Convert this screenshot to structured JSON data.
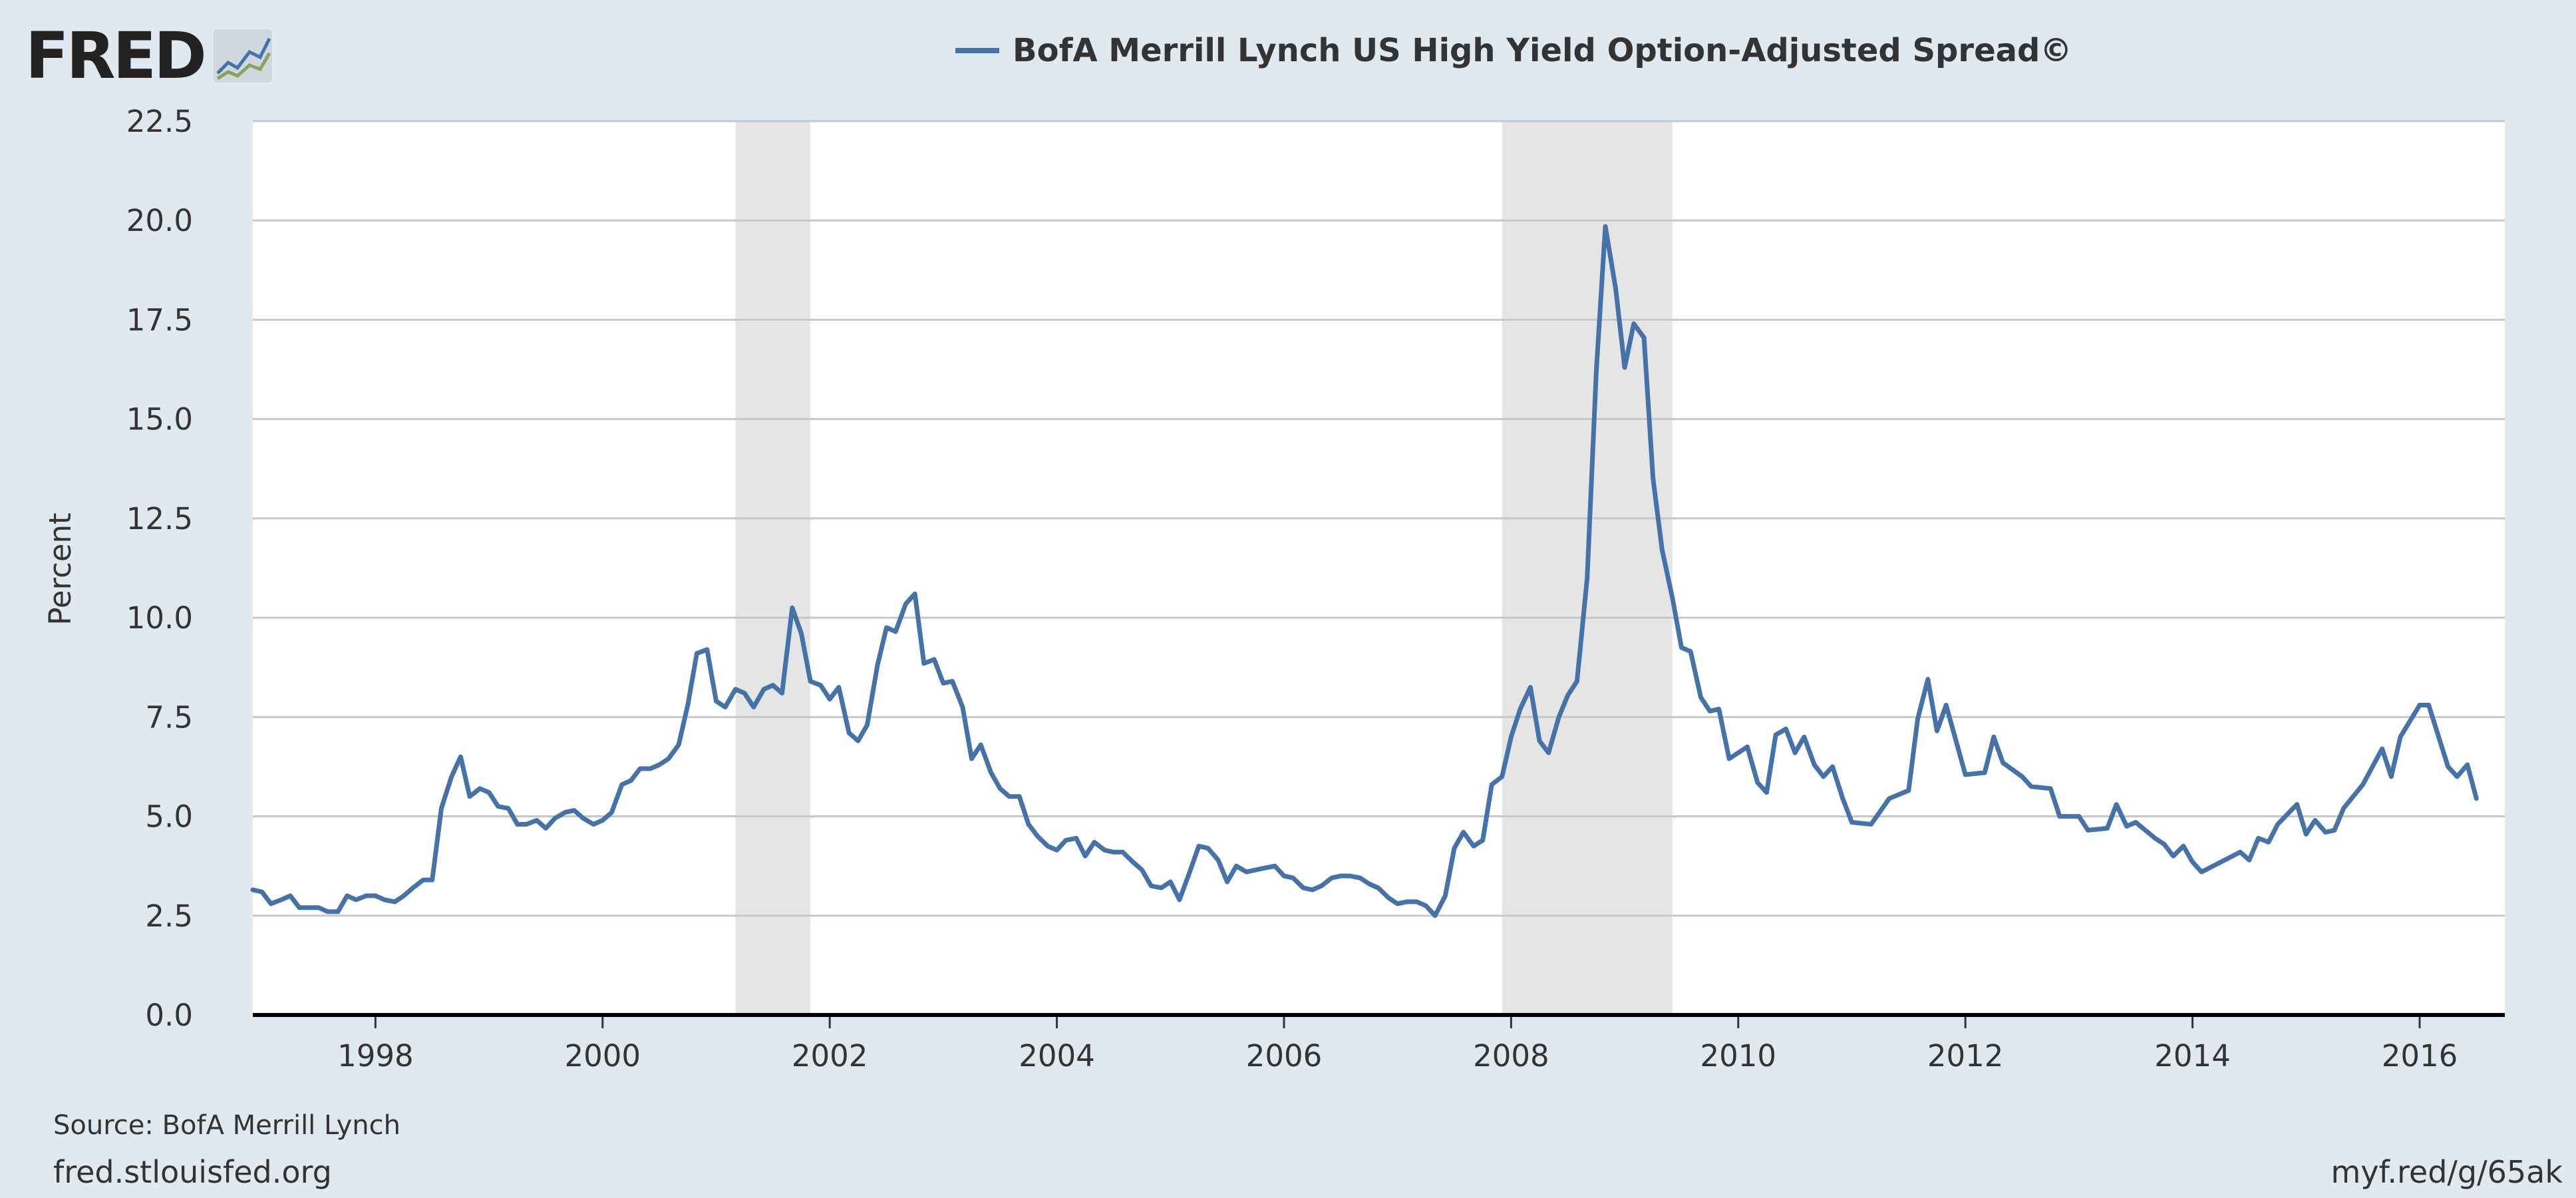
{
  "logo": {
    "text": "FRED",
    "icon": "fred-chart-icon"
  },
  "legend": {
    "label": "BofA Merrill Lynch US High Yield Option-Adjusted Spread©",
    "color": "#4572a7"
  },
  "footer": {
    "source": "Source: BofA Merrill Lynch",
    "site": "fred.stlouisfed.org",
    "link": "myf.red/g/65ak"
  },
  "chart_data": {
    "type": "line",
    "title": "",
    "ylabel": "Percent",
    "xlabel": "",
    "xlim": [
      1996.92,
      2016.75
    ],
    "ylim": [
      0,
      22.5
    ],
    "yticks": [
      "0.0",
      "2.5",
      "5.0",
      "7.5",
      "10.0",
      "12.5",
      "15.0",
      "17.5",
      "20.0",
      "22.5"
    ],
    "xticks": [
      "1998",
      "2000",
      "2002",
      "2004",
      "2006",
      "2008",
      "2010",
      "2012",
      "2014",
      "2016"
    ],
    "grid": true,
    "legend_position": "top-center",
    "recessions": [
      [
        2001.17,
        2001.83
      ],
      [
        2007.92,
        2009.42
      ]
    ],
    "series": [
      {
        "name": "BofA Merrill Lynch US High Yield Option-Adjusted Spread©",
        "color": "#4572a7",
        "x": [
          1996.92,
          1997.0,
          1997.08,
          1997.17,
          1997.25,
          1997.33,
          1997.42,
          1997.5,
          1997.58,
          1997.67,
          1997.75,
          1997.83,
          1997.92,
          1998.0,
          1998.08,
          1998.17,
          1998.25,
          1998.33,
          1998.42,
          1998.5,
          1998.58,
          1998.67,
          1998.75,
          1998.83,
          1998.92,
          1999.0,
          1999.08,
          1999.17,
          1999.25,
          1999.33,
          1999.42,
          1999.5,
          1999.58,
          1999.67,
          1999.75,
          1999.83,
          1999.92,
          2000.0,
          2000.08,
          2000.17,
          2000.25,
          2000.33,
          2000.42,
          2000.5,
          2000.58,
          2000.67,
          2000.75,
          2000.83,
          2000.92,
          2001.0,
          2001.08,
          2001.17,
          2001.25,
          2001.33,
          2001.42,
          2001.5,
          2001.58,
          2001.67,
          2001.75,
          2001.83,
          2001.92,
          2002.0,
          2002.08,
          2002.17,
          2002.25,
          2002.33,
          2002.42,
          2002.5,
          2002.58,
          2002.67,
          2002.75,
          2002.83,
          2002.92,
          2003.0,
          2003.08,
          2003.17,
          2003.25,
          2003.33,
          2003.42,
          2003.5,
          2003.58,
          2003.67,
          2003.75,
          2003.83,
          2003.92,
          2004.0,
          2004.08,
          2004.17,
          2004.25,
          2004.33,
          2004.42,
          2004.5,
          2004.58,
          2004.67,
          2004.75,
          2004.83,
          2004.92,
          2005.0,
          2005.08,
          2005.17,
          2005.25,
          2005.33,
          2005.42,
          2005.5,
          2005.58,
          2005.67,
          2005.75,
          2005.83,
          2005.92,
          2006.0,
          2006.08,
          2006.17,
          2006.25,
          2006.33,
          2006.42,
          2006.5,
          2006.58,
          2006.67,
          2006.75,
          2006.83,
          2006.92,
          2007.0,
          2007.08,
          2007.17,
          2007.25,
          2007.33,
          2007.42,
          2007.5,
          2007.58,
          2007.67,
          2007.75,
          2007.83,
          2007.92,
          2008.0,
          2008.08,
          2008.17,
          2008.25,
          2008.33,
          2008.42,
          2008.5,
          2008.58,
          2008.67,
          2008.75,
          2008.83,
          2008.92,
          2009.0,
          2009.08,
          2009.17,
          2009.25,
          2009.33,
          2009.42,
          2009.5,
          2009.58,
          2009.67,
          2009.75,
          2009.83,
          2009.92,
          2010.0,
          2010.08,
          2010.17,
          2010.25,
          2010.33,
          2010.42,
          2010.5,
          2010.58,
          2010.67,
          2010.75,
          2010.83,
          2010.92,
          2011.0,
          2011.17,
          2011.33,
          2011.5,
          2011.58,
          2011.67,
          2011.75,
          2011.83,
          2012.0,
          2012.17,
          2012.25,
          2012.33,
          2012.5,
          2012.58,
          2012.75,
          2012.83,
          2013.0,
          2013.08,
          2013.25,
          2013.33,
          2013.42,
          2013.5,
          2013.67,
          2013.75,
          2013.83,
          2013.92,
          2014.0,
          2014.08,
          2014.42,
          2014.5,
          2014.58,
          2014.67,
          2014.75,
          2014.92,
          2015.0,
          2015.08,
          2015.17,
          2015.25,
          2015.33,
          2015.5,
          2015.67,
          2015.75,
          2015.83,
          2016.0,
          2016.08,
          2016.25,
          2016.33,
          2016.42,
          2016.5
        ],
        "y": [
          3.15,
          3.1,
          2.8,
          2.9,
          3.0,
          2.7,
          2.7,
          2.7,
          2.6,
          2.6,
          3.0,
          2.9,
          3.0,
          3.0,
          2.9,
          2.85,
          3.0,
          3.2,
          3.4,
          3.4,
          5.2,
          6.0,
          6.5,
          5.5,
          5.7,
          5.6,
          5.25,
          5.2,
          4.8,
          4.8,
          4.9,
          4.7,
          4.95,
          5.1,
          5.15,
          4.95,
          4.8,
          4.9,
          5.1,
          5.8,
          5.9,
          6.2,
          6.2,
          6.3,
          6.45,
          6.8,
          7.8,
          9.1,
          9.2,
          7.9,
          7.75,
          8.2,
          8.1,
          7.75,
          8.2,
          8.3,
          8.1,
          10.25,
          9.6,
          8.4,
          8.3,
          7.95,
          8.25,
          7.1,
          6.9,
          7.3,
          8.8,
          9.75,
          9.65,
          10.35,
          10.6,
          8.85,
          8.95,
          8.35,
          8.4,
          7.75,
          6.45,
          6.8,
          6.1,
          5.7,
          5.5,
          5.5,
          4.8,
          4.5,
          4.25,
          4.15,
          4.4,
          4.45,
          4.0,
          4.35,
          4.15,
          4.1,
          4.1,
          3.85,
          3.65,
          3.25,
          3.2,
          3.35,
          2.9,
          3.6,
          4.25,
          4.2,
          3.9,
          3.35,
          3.75,
          3.6,
          3.65,
          3.7,
          3.75,
          3.5,
          3.45,
          3.2,
          3.15,
          3.25,
          3.45,
          3.5,
          3.5,
          3.45,
          3.3,
          3.2,
          2.95,
          2.8,
          2.85,
          2.85,
          2.75,
          2.5,
          3.0,
          4.2,
          4.6,
          4.25,
          4.4,
          5.8,
          6.0,
          7.0,
          7.7,
          8.25,
          6.9,
          6.6,
          7.5,
          8.05,
          8.4,
          11.0,
          16.2,
          19.85,
          18.3,
          16.3,
          17.4,
          17.05,
          13.5,
          11.7,
          10.5,
          9.25,
          9.15,
          8.0,
          7.65,
          7.7,
          6.45,
          6.6,
          6.75,
          5.85,
          5.6,
          7.05,
          7.2,
          6.6,
          7.0,
          6.3,
          6.0,
          6.25,
          5.45,
          4.85,
          4.8,
          5.45,
          5.65,
          7.45,
          8.45,
          7.15,
          7.8,
          6.05,
          6.1,
          7.0,
          6.35,
          6.0,
          5.75,
          5.7,
          5.0,
          5.0,
          4.65,
          4.7,
          5.3,
          4.75,
          4.85,
          4.45,
          4.3,
          4.0,
          4.25,
          3.85,
          3.6,
          4.1,
          3.9,
          4.45,
          4.35,
          4.8,
          5.3,
          4.55,
          4.9,
          4.6,
          4.65,
          5.2,
          5.8,
          6.7,
          6.0,
          7.0,
          7.8,
          7.8,
          6.25,
          6.0,
          6.3,
          5.45
        ]
      }
    ]
  }
}
